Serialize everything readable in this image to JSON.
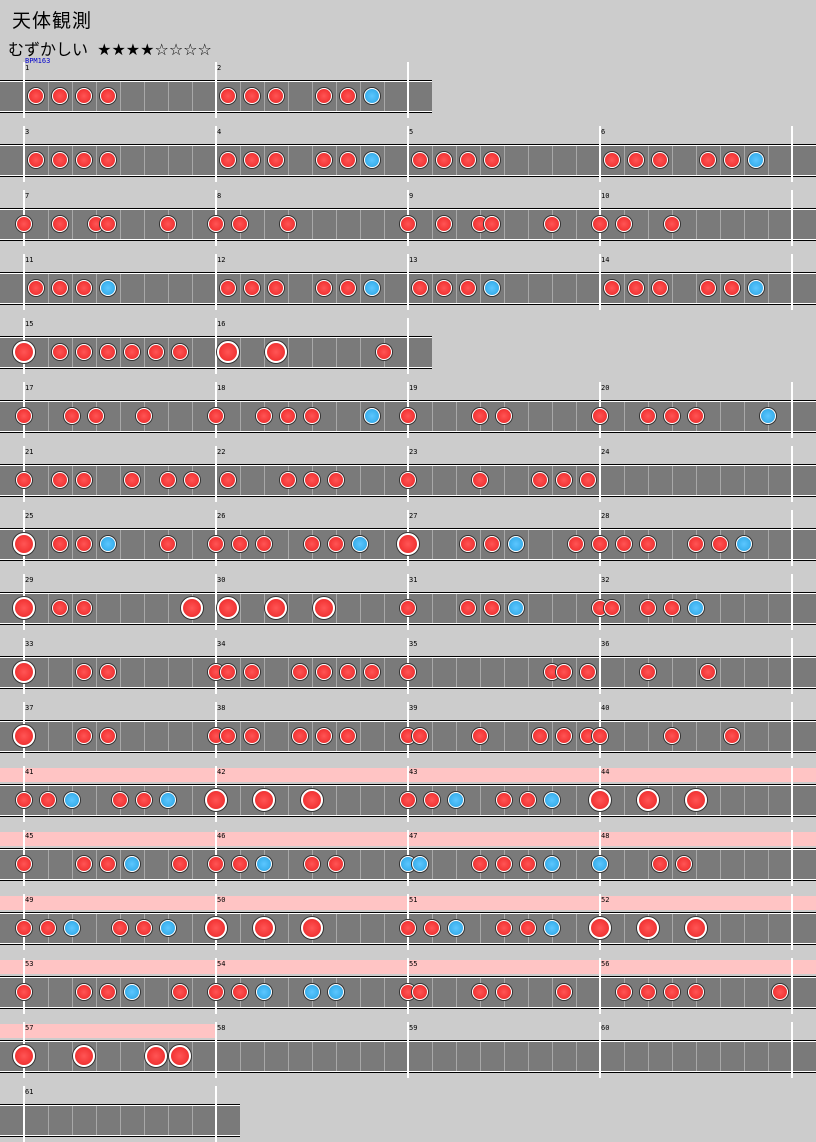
{
  "song": {
    "title": "天体観測",
    "difficulty_label": "むずかしい",
    "stars": "★★★★☆☆☆☆"
  },
  "bpm_label": "BPM163",
  "rows": [
    {
      "measures": [
        1,
        2
      ],
      "gogo": []
    },
    {
      "measures": [
        3,
        4,
        5,
        6
      ],
      "gogo": []
    },
    {
      "measures": [
        7,
        8,
        9,
        10
      ],
      "gogo": []
    },
    {
      "measures": [
        11,
        12,
        13,
        14
      ],
      "gogo": []
    },
    {
      "measures": [
        15,
        16
      ],
      "gogo": []
    },
    {
      "measures": [
        17,
        18,
        19,
        20
      ],
      "gogo": []
    },
    {
      "measures": [
        21,
        22,
        23,
        24
      ],
      "gogo": []
    },
    {
      "measures": [
        25,
        26,
        27,
        28
      ],
      "gogo": []
    },
    {
      "measures": [
        29,
        30,
        31,
        32
      ],
      "gogo": []
    },
    {
      "measures": [
        33,
        34,
        35,
        36
      ],
      "gogo": []
    },
    {
      "measures": [
        37,
        38,
        39,
        40
      ],
      "gogo": []
    },
    {
      "measures": [
        41,
        42,
        43,
        44
      ],
      "gogo": [
        41,
        42,
        43,
        44
      ]
    },
    {
      "measures": [
        45,
        46,
        47,
        48
      ],
      "gogo": [
        45,
        46,
        47,
        48
      ]
    },
    {
      "measures": [
        49,
        50,
        51,
        52
      ],
      "gogo": [
        49,
        50,
        51,
        52
      ]
    },
    {
      "measures": [
        53,
        54,
        55,
        56
      ],
      "gogo": [
        53,
        54,
        55,
        56
      ]
    },
    {
      "measures": [
        57,
        58,
        59,
        60
      ],
      "gogo": [
        57
      ]
    },
    {
      "measures": [
        61
      ],
      "gogo": []
    }
  ],
  "notes_legend": {
    "d": "don",
    "k": "ka",
    "D": "big don",
    "K": "big ka"
  },
  "measures": {
    "1": "0d0d0d0d00000000",
    "2": "0d0d0d000d0d0k00",
    "3": "0d0d0d0d00000000",
    "4": "0d0d0d000d0d0k00",
    "5": "0d0d0d0d00000000",
    "6": "0d0d0d000d0d0k00",
    "7": "d00d00dd0000d000",
    "8": "d0d000d000000000",
    "9": "d00d00dd0000d000",
    "10": "d0d000d000000000",
    "11": "0d0d0d0k00000000",
    "12": "0d0d0d000d0d0k00",
    "13": "0d0d0d0k00000000",
    "14": "0d0d0d000d0d0k00",
    "15": "D00d0d0d0d0d0d00",
    "16": "0D000D00000000d0",
    "17": "d000d0d000d00000",
    "18": "d000d0d0d0000k00",
    "19": "d00000d0d0000000",
    "20": "d000d0d0d00000k0",
    "21": "d00d0d000d00d0d0",
    "22": "0d0000d0d0d00000",
    "23": "d00000d0000d0d0d",
    "24": "00000000000000000",
    "25": "D00d0d0k0000d000",
    "26": "d0d0d000d0d0k000",
    "27": "D0000d0d0k0000d0",
    "28": "d0d0d000d0d0k000",
    "29": "D00d0d00000000D0",
    "30": "0D000D000D000000",
    "31": "d0000d0d0k000000",
    "32": "dd00d0d0k0000000",
    "33": "D0000d0d00000000",
    "34": "dd0d000d0d0d0d00",
    "35": "d00000000000dd0d",
    "36": "0000d0000d000000",
    "37": "D0000d0d00000000",
    "38": "dd0d000d0d0d0000",
    "39": "dd0000d0000d0d0d",
    "40": "d00000d0000d0000",
    "41": "d0d0k000d0d0k000",
    "42": "D000D000D0000000",
    "43": "d0d0k000d0d0k000",
    "44": "D000D000D0000000",
    "45": "d0000d0d0k000d00",
    "46": "d0d0k000d0d00000",
    "47": "kk0000d0d0d0k000",
    "48": "k0000d0d00000000",
    "49": "d0d0k000d0d0k000",
    "50": "D000D000D0000000",
    "51": "d0d0k000d0d0k000",
    "52": "D000D000D0000000",
    "53": "d0000d0d0k000d00",
    "54": "d0d0k000k0k00000",
    "55": "dd0000d0d0000d00",
    "56": "00d0d0d0d000000d",
    "57": "D0000D00000D0D00",
    "58": "0000000000000000",
    "59": "0000000000000000",
    "60": "0000000000000000",
    "61": "0000000000000000"
  }
}
